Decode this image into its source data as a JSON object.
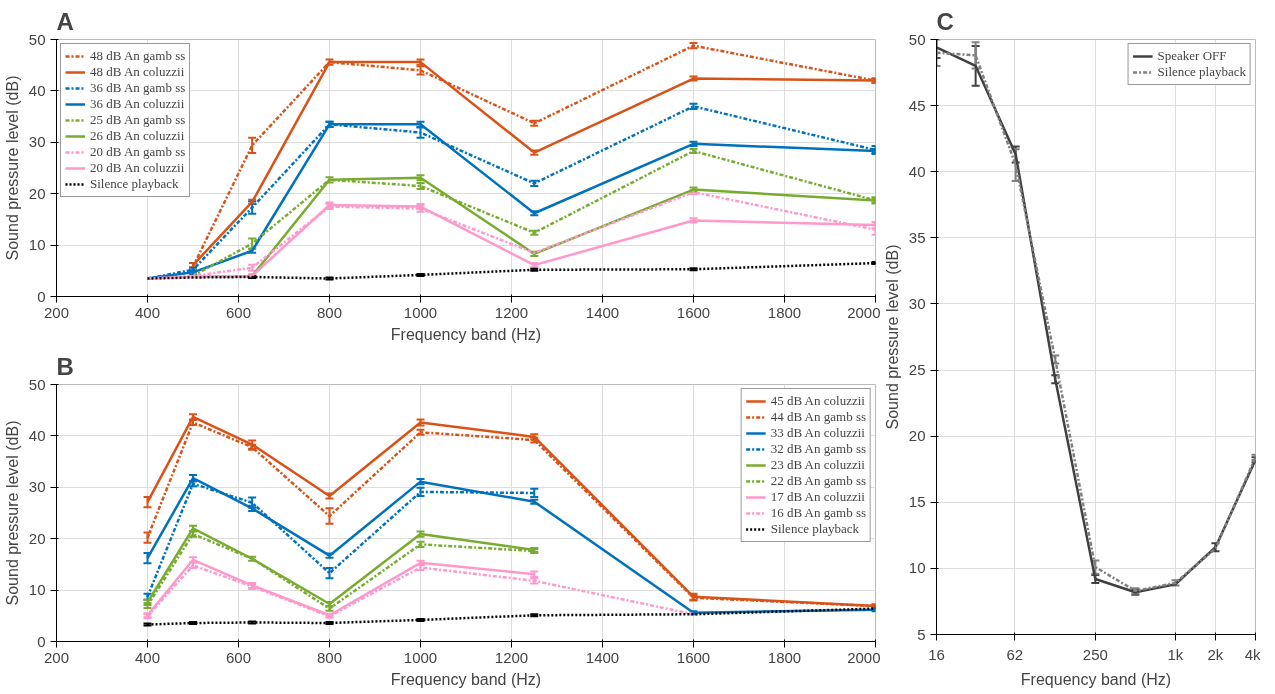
{
  "chart_data": [
    {
      "type": "line",
      "title": "A",
      "xlabel": "Frequency band (Hz)",
      "ylabel": "Sound pressure level (dB)",
      "x": [
        400,
        500,
        630,
        800,
        1000,
        1250,
        1600,
        2000
      ],
      "xlim": [
        200,
        2000
      ],
      "xticks": [
        200,
        400,
        600,
        800,
        1000,
        1200,
        1400,
        1600,
        1800,
        2000
      ],
      "ylim": [
        0,
        50
      ],
      "yticks": [
        0,
        10,
        20,
        30,
        40,
        50
      ],
      "grid": true,
      "legend": "top left",
      "series": [
        {
          "name": "48 dB An gamb ss",
          "color": "#d95319",
          "line_style": "dashed",
          "values": [
            null,
            5.8,
            29.4,
            45.6,
            44.0,
            33.7,
            48.8,
            42.0
          ],
          "errors": [
            null,
            null,
            1.5,
            null,
            0.8,
            0.5,
            0.5,
            0.4
          ]
        },
        {
          "name": "48 dB An coluzzii",
          "color": "#d95319",
          "line_style": "solid",
          "values": [
            null,
            6.1,
            18.4,
            45.6,
            45.6,
            28.0,
            42.4,
            42.0
          ],
          "errors": [
            null,
            0.4,
            0.4,
            0.5,
            0.5,
            0.4,
            0.4,
            0.4
          ]
        },
        {
          "name": "36 dB An gamb ss",
          "color": "#0072bd",
          "line_style": "dashed",
          "values": [
            3.5,
            5.2,
            17.3,
            33.5,
            31.9,
            22.0,
            37.0,
            28.5
          ],
          "errors": [
            null,
            0.4,
            1.2,
            0.5,
            1.0,
            0.5,
            0.5,
            0.8
          ]
        },
        {
          "name": "36 dB An coluzzii",
          "color": "#0072bd",
          "line_style": "solid",
          "values": [
            3.5,
            4.7,
            8.9,
            33.5,
            33.5,
            16.2,
            29.7,
            28.3
          ],
          "errors": [
            null,
            0.4,
            0.4,
            0.5,
            0.5,
            0.4,
            0.4,
            0.4
          ]
        },
        {
          "name": "25 dB An gamb ss",
          "color": "#77ac30",
          "line_style": "dashed",
          "values": [
            null,
            4.0,
            10.3,
            22.7,
            21.5,
            12.4,
            28.3,
            18.7
          ],
          "errors": [
            null,
            null,
            1.0,
            null,
            0.6,
            0.4,
            0.4,
            0.6
          ]
        },
        {
          "name": "26 dB An coluzzii",
          "color": "#77ac30",
          "line_style": "solid",
          "values": [
            null,
            3.8,
            4.0,
            22.7,
            23.1,
            8.3,
            20.8,
            18.7
          ],
          "errors": [
            null,
            null,
            0.3,
            0.5,
            0.5,
            0.4,
            0.4,
            0.4
          ]
        },
        {
          "name": "20 dB An gamb ss",
          "color": "#ff99cc",
          "line_style": "dashed",
          "values": [
            3.5,
            4.0,
            5.6,
            17.5,
            17.1,
            8.5,
            20.3,
            13.0
          ],
          "errors": [
            null,
            null,
            0.6,
            0.5,
            0.6,
            null,
            0.4,
            1.0
          ]
        },
        {
          "name": "20 dB An coluzzii",
          "color": "#ff99cc",
          "line_style": "solid",
          "values": [
            3.5,
            3.8,
            4.0,
            17.8,
            17.5,
            6.1,
            14.8,
            13.9
          ],
          "errors": [
            null,
            null,
            0.3,
            0.5,
            0.5,
            0.4,
            0.4,
            0.6
          ]
        },
        {
          "name": "Silence playback",
          "color": "#000000",
          "line_style": "dotted",
          "values": [
            3.5,
            3.7,
            3.8,
            3.5,
            4.2,
            5.2,
            5.3,
            6.5
          ],
          "errors": [
            null,
            null,
            0.2,
            0.2,
            0.2,
            0.2,
            0.2,
            0.2
          ]
        }
      ]
    },
    {
      "type": "line",
      "title": "B",
      "xlabel": "Frequency band (Hz)",
      "ylabel": "Sound pressure level (dB)",
      "x": [
        400,
        500,
        630,
        800,
        1000,
        1250,
        1600,
        2000
      ],
      "xlim": [
        200,
        2000
      ],
      "xticks": [
        200,
        400,
        600,
        800,
        1000,
        1200,
        1400,
        1600,
        1800,
        2000
      ],
      "ylim": [
        0,
        50
      ],
      "yticks": [
        0,
        10,
        20,
        30,
        40,
        50
      ],
      "grid": true,
      "legend": "top right",
      "series": [
        {
          "name": "45 dB An coluzzii",
          "color": "#d95319",
          "line_style": "solid",
          "values": [
            27.1,
            43.7,
            38.3,
            28.3,
            42.6,
            39.8,
            8.7,
            6.9
          ],
          "errors": [
            1.0,
            0.5,
            0.8,
            0.5,
            0.6,
            0.5,
            0.6,
            0.3
          ]
        },
        {
          "name": "44 dB An gamb ss",
          "color": "#d95319",
          "line_style": "dashed",
          "values": [
            20.2,
            42.6,
            37.8,
            24.4,
            40.7,
            39.2,
            8.5,
            6.9
          ],
          "errors": [
            1.0,
            0.5,
            0.5,
            1.5,
            0.5,
            0.5,
            0.5,
            0.3
          ]
        },
        {
          "name": "33 dB An coluzzii",
          "color": "#0072bd",
          "line_style": "solid",
          "values": [
            16.2,
            31.8,
            25.9,
            16.7,
            31.1,
            27.2,
            5.6,
            6.2
          ],
          "errors": [
            1.0,
            0.6,
            0.5,
            0.4,
            0.5,
            0.4,
            0.3,
            0.3
          ]
        },
        {
          "name": "32 dB An gamb ss",
          "color": "#0072bd",
          "line_style": "dashed",
          "values": [
            8.7,
            30.7,
            27.0,
            13.3,
            29.1,
            28.9,
            null,
            null
          ],
          "errors": [
            0.6,
            0.5,
            1.0,
            1.0,
            0.8,
            0.8,
            null,
            null
          ]
        },
        {
          "name": "23 dB An coluzzii",
          "color": "#77ac30",
          "line_style": "solid",
          "values": [
            7.6,
            22.0,
            16.1,
            7.3,
            20.9,
            17.8,
            null,
            null
          ],
          "errors": [
            0.5,
            0.5,
            0.4,
            0.4,
            0.5,
            0.4,
            null,
            null
          ]
        },
        {
          "name": "22 dB An gamb ss",
          "color": "#77ac30",
          "line_style": "dashed",
          "values": [
            7.0,
            20.9,
            16.1,
            6.4,
            18.9,
            17.6,
            null,
            null
          ],
          "errors": [
            0.5,
            0.5,
            null,
            0.4,
            0.5,
            0.4,
            null,
            null
          ]
        },
        {
          "name": "17 dB An coluzzii",
          "color": "#ff99cc",
          "line_style": "solid",
          "values": [
            5.1,
            15.9,
            10.9,
            5.1,
            15.3,
            13.1,
            null,
            null
          ],
          "errors": [
            0.4,
            0.5,
            0.5,
            0.3,
            0.4,
            0.5,
            null,
            null
          ]
        },
        {
          "name": "16 dB An gamb ss",
          "color": "#ff99cc",
          "line_style": "dashed",
          "values": [
            4.9,
            14.8,
            10.7,
            4.9,
            14.4,
            11.8,
            5.3,
            null
          ],
          "errors": [
            0.4,
            0.5,
            0.5,
            0.3,
            0.5,
            0.5,
            null,
            null
          ]
        },
        {
          "name": "Silence playback",
          "color": "#000000",
          "line_style": "dotted",
          "values": [
            3.3,
            3.6,
            3.7,
            3.6,
            4.2,
            5.1,
            5.3,
            6.4
          ],
          "errors": [
            0.2,
            0.2,
            0.2,
            0.2,
            0.2,
            0.2,
            null,
            null
          ]
        }
      ]
    },
    {
      "type": "line",
      "title": "C",
      "xlabel": "Frequency band (Hz)",
      "ylabel": "Sound pressure level (dB)",
      "log": "x",
      "x": [
        16,
        31.5,
        63,
        125,
        250,
        500,
        1000,
        2000,
        4000
      ],
      "xlim": [
        16,
        4000
      ],
      "xticks": [
        16,
        62,
        250,
        {
          "value": 1000,
          "label": "1k"
        },
        {
          "value": 2000,
          "label": "2k"
        },
        {
          "value": 4000,
          "label": "4k"
        }
      ],
      "ylim": [
        5,
        50
      ],
      "yticks": [
        5,
        10,
        15,
        20,
        25,
        30,
        35,
        40,
        45,
        50
      ],
      "grid": true,
      "legend": "top right",
      "series": [
        {
          "name": "Speaker OFF",
          "color": "#404040",
          "line_style": "solid",
          "values": [
            49.4,
            48.0,
            41.3,
            24.3,
            9.2,
            8.2,
            8.8,
            11.6,
            18.2
          ],
          "errors": [
            0.8,
            1.5,
            0.6,
            0.3,
            0.3,
            0.2,
            null,
            0.3,
            0.2
          ]
        },
        {
          "name": "Silence playback",
          "color": "#808080",
          "line_style": "dashed",
          "values": [
            49.0,
            48.8,
            40.5,
            25.8,
            10.1,
            8.3,
            8.9,
            11.5,
            18.4
          ],
          "errors": [
            1.0,
            1.0,
            1.2,
            0.3,
            0.5,
            0.2,
            0.2,
            null,
            0.2
          ]
        }
      ]
    }
  ]
}
